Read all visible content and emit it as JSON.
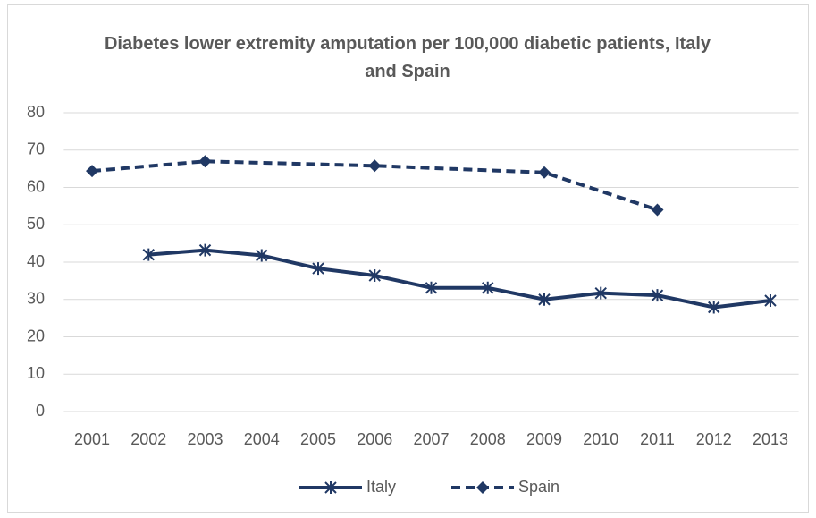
{
  "chart_data": {
    "type": "line",
    "title": "Diabetes lower extremity amputation per 100,000 diabetic patients, Italy and Spain",
    "xlim": [
      2000.5,
      2013.5
    ],
    "xticks": [
      2001,
      2002,
      2003,
      2004,
      2005,
      2006,
      2007,
      2008,
      2009,
      2010,
      2011,
      2012,
      2013
    ],
    "ylim": [
      0,
      80
    ],
    "yticks": [
      0,
      10,
      20,
      30,
      40,
      50,
      60,
      70,
      80
    ],
    "grid": true,
    "legend": "bottom",
    "series": [
      {
        "name": "Italy",
        "color": "#203864",
        "dash": false,
        "marker": "star",
        "x": [
          2002,
          2003,
          2004,
          2005,
          2006,
          2007,
          2008,
          2009,
          2010,
          2011,
          2012,
          2013
        ],
        "values": [
          42,
          43.2,
          41.8,
          38.3,
          36.4,
          33.1,
          33.1,
          30,
          31.7,
          31.1,
          27.9,
          29.7
        ]
      },
      {
        "name": "Spain",
        "color": "#203864",
        "dash": true,
        "marker": "diamond",
        "x": [
          2001,
          2003,
          2006,
          2009,
          2011
        ],
        "values": [
          64.4,
          67,
          65.8,
          64,
          54
        ]
      }
    ]
  }
}
